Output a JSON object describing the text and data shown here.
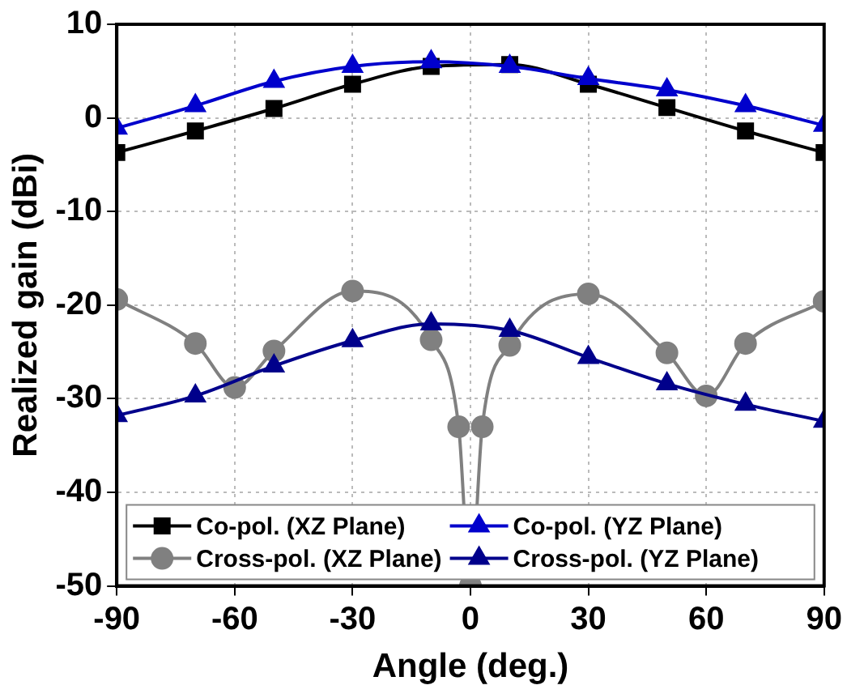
{
  "chart_data": {
    "type": "line",
    "xlabel": "Angle (deg.)",
    "ylabel": "Realized gain (dBi)",
    "xlim": [
      -90,
      90
    ],
    "xticks": [
      -90,
      -60,
      -30,
      0,
      30,
      60,
      90
    ],
    "ylim": [
      -50,
      10
    ],
    "yticks": [
      -50,
      -40,
      -30,
      -20,
      -10,
      0,
      10
    ],
    "grid": true,
    "legend": "bottom",
    "series": [
      {
        "name": "Co-pol. (XZ Plane)",
        "color": "#000000",
        "marker": "square",
        "x": [
          -90,
          -70,
          -50,
          -30,
          -10,
          10,
          30,
          50,
          70,
          90
        ],
        "values": [
          -3.7,
          -1.4,
          1.0,
          3.6,
          5.5,
          5.7,
          3.6,
          1.1,
          -1.4,
          -3.7
        ]
      },
      {
        "name": "Co-pol. (YZ Plane)",
        "color": "#0000cc",
        "marker": "triangle",
        "x": [
          -90,
          -70,
          -50,
          -30,
          -10,
          10,
          30,
          50,
          70,
          90
        ],
        "values": [
          -1.1,
          1.3,
          3.9,
          5.5,
          6.0,
          5.5,
          4.2,
          3.0,
          1.3,
          -0.8
        ]
      },
      {
        "name": "Cross-pol. (XZ Plane)",
        "color": "#808080",
        "marker": "circle",
        "x": [
          -90,
          -70,
          -60,
          -50,
          -30,
          -10,
          -3,
          0,
          3,
          10,
          30,
          50,
          60,
          70,
          90
        ],
        "values": [
          -19.4,
          -24.1,
          -28.8,
          -24.9,
          -18.5,
          -23.7,
          -33,
          -50,
          -33,
          -24.3,
          -18.8,
          -25.1,
          -29.7,
          -24.1,
          -19.6
        ]
      },
      {
        "name": "Cross-pol. (YZ Plane)",
        "color": "#00008b",
        "marker": "triangle",
        "x": [
          -90,
          -70,
          -50,
          -30,
          -10,
          10,
          30,
          50,
          70,
          90
        ],
        "values": [
          -31.8,
          -29.7,
          -26.5,
          -23.8,
          -22.0,
          -22.7,
          -25.6,
          -28.4,
          -30.6,
          -32.4
        ]
      }
    ]
  }
}
